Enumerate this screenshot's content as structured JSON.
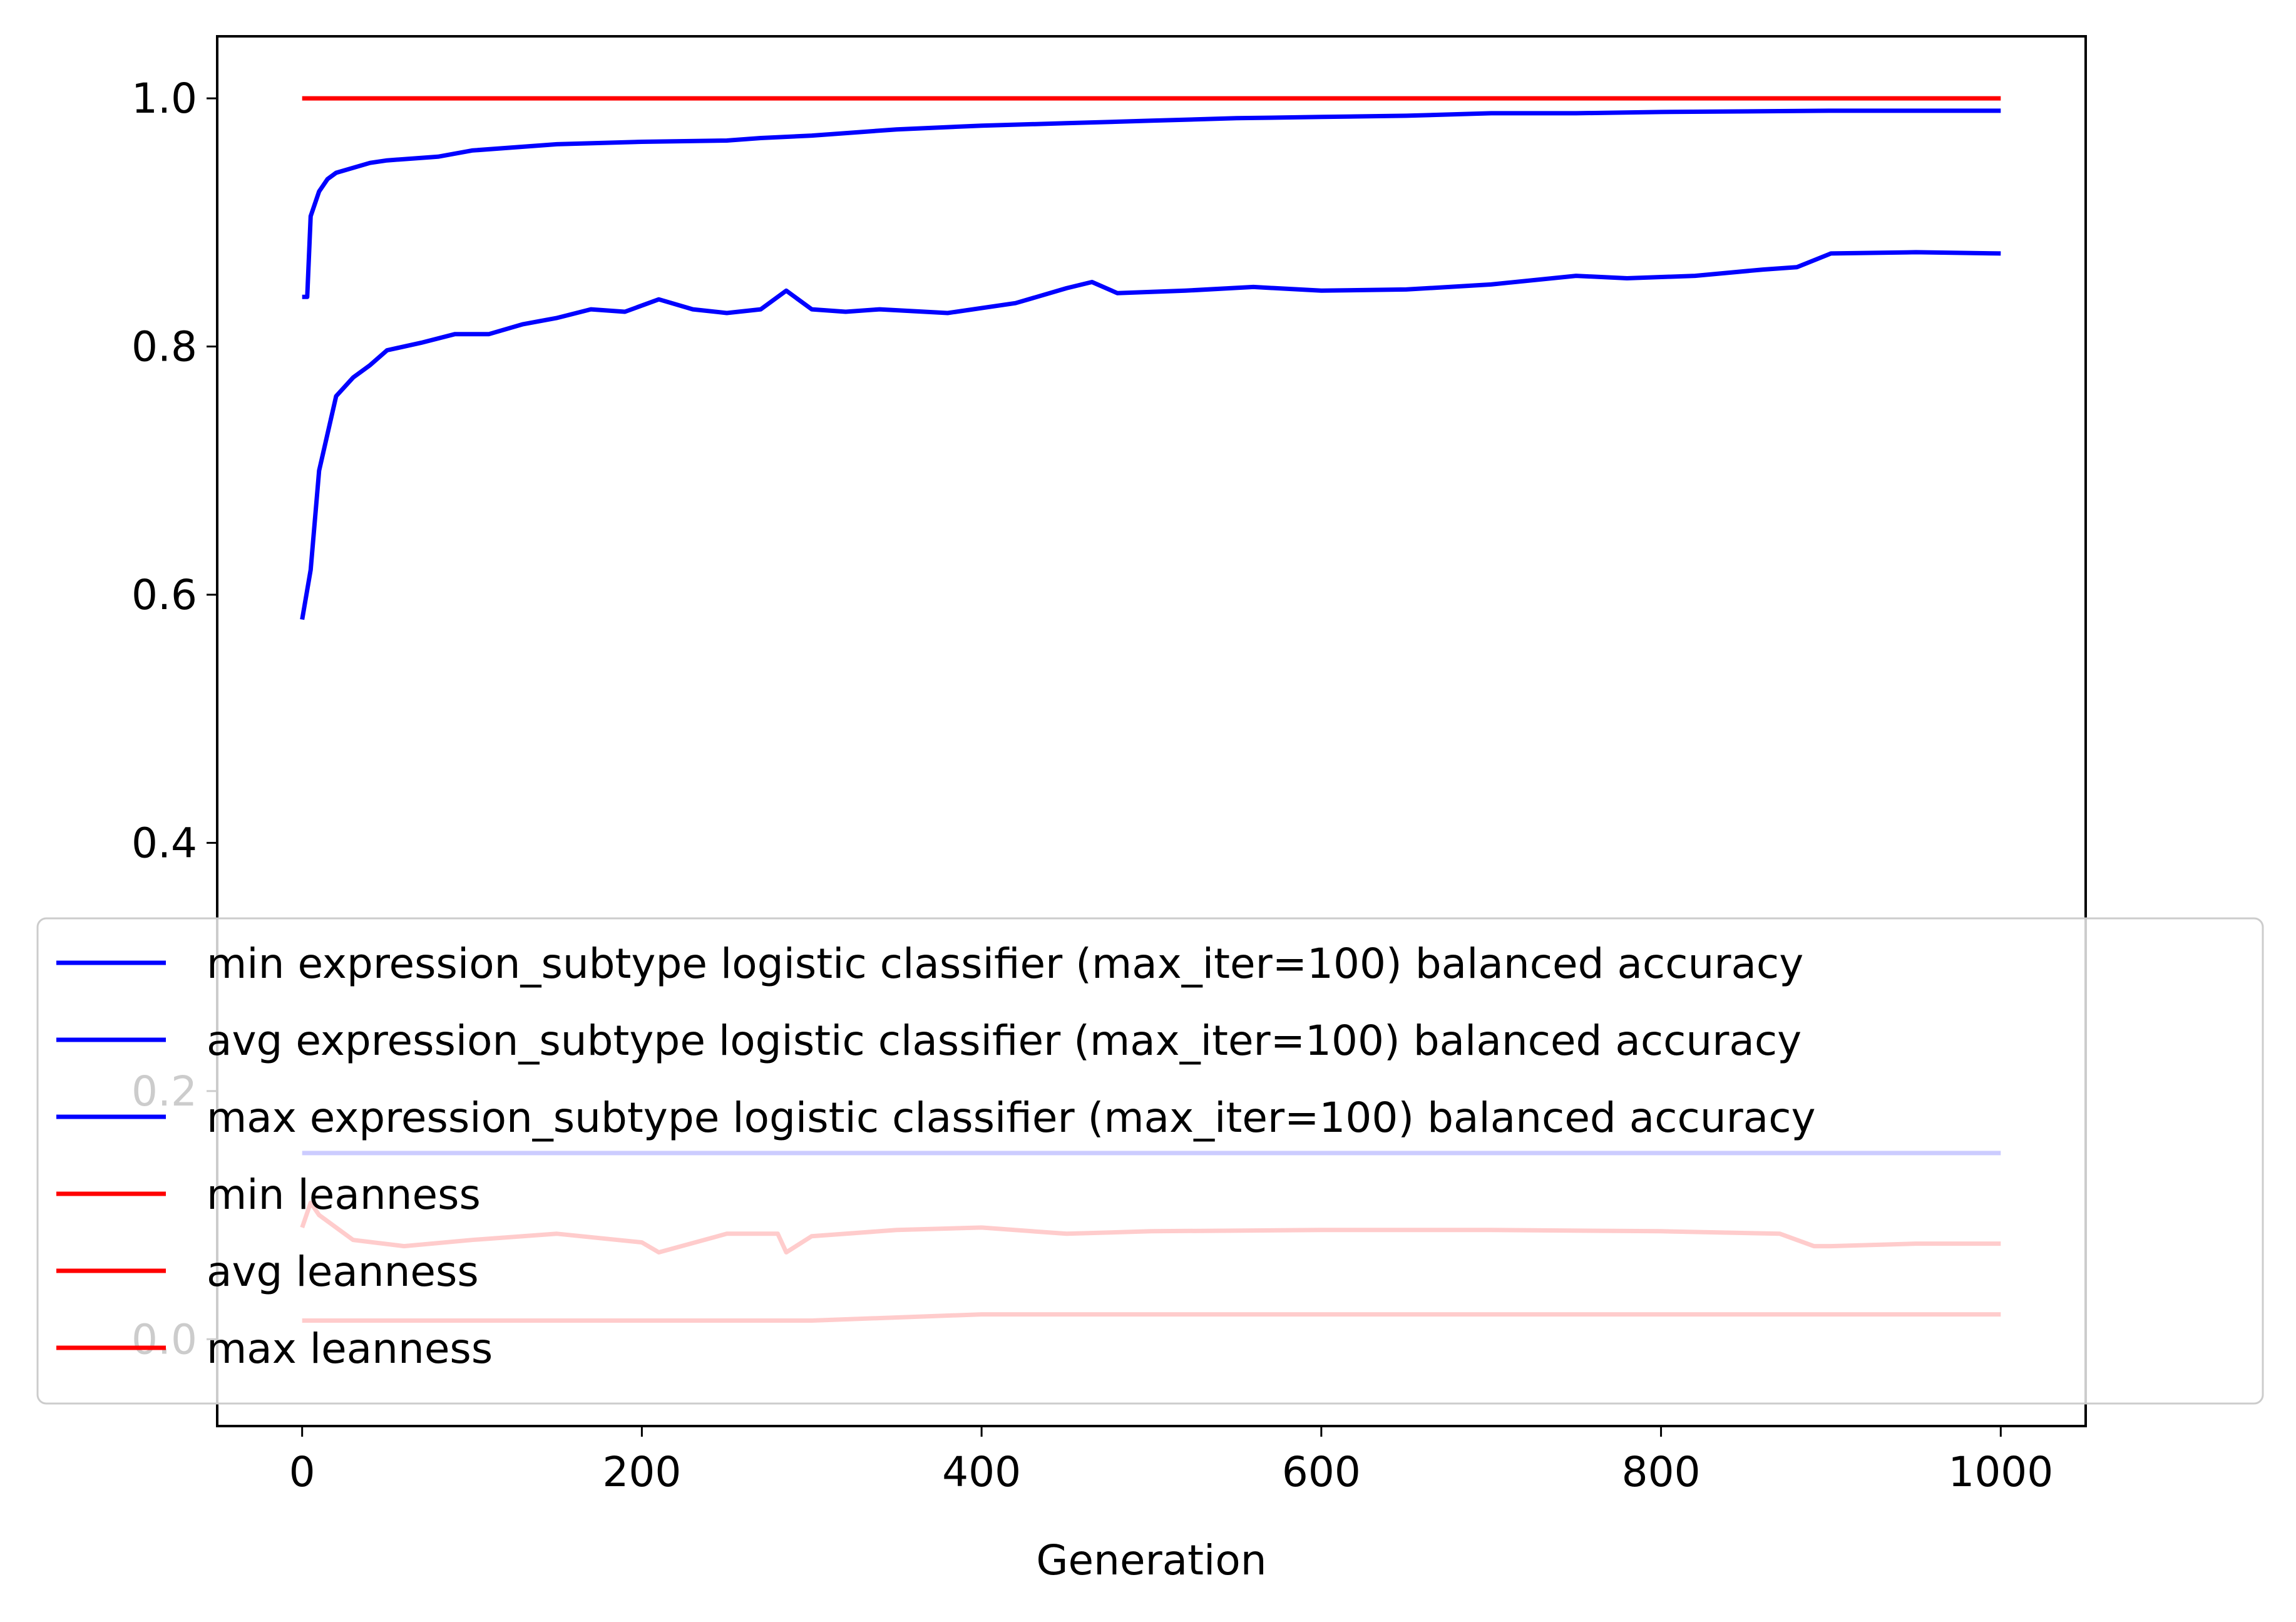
{
  "chart_data": {
    "type": "line",
    "title": "",
    "xlabel": "Generation",
    "ylabel": "",
    "xlim": [
      -50,
      1050
    ],
    "ylim": [
      -0.07,
      1.05
    ],
    "x_ticks": [
      0,
      200,
      400,
      600,
      800,
      1000
    ],
    "y_ticks": [
      0.0,
      0.2,
      0.4,
      0.6,
      0.8,
      1.0
    ],
    "x_tick_labels": [
      "0",
      "200",
      "400",
      "600",
      "800",
      "1000"
    ],
    "y_tick_labels": [
      "0.0",
      "0.2",
      "0.4",
      "0.6",
      "0.8",
      "1.0"
    ],
    "grid": false,
    "legend_position": "lower center (overlapping plot)",
    "series": [
      {
        "name": "min expression_subtype logistic classifier (max_iter=100) balanced accuracy",
        "color": "#0000ff",
        "x": [
          0,
          50,
          100,
          200,
          300,
          400,
          500,
          600,
          700,
          800,
          900,
          1000
        ],
        "y": [
          0.15,
          0.15,
          0.15,
          0.15,
          0.15,
          0.15,
          0.15,
          0.15,
          0.15,
          0.15,
          0.15,
          0.15
        ]
      },
      {
        "name": "avg expression_subtype logistic classifier (max_iter=100) balanced accuracy",
        "color": "#0000ff",
        "x": [
          0,
          5,
          10,
          15,
          20,
          30,
          40,
          50,
          70,
          90,
          110,
          130,
          150,
          170,
          190,
          210,
          230,
          250,
          270,
          285,
          300,
          320,
          340,
          380,
          420,
          450,
          465,
          480,
          520,
          560,
          600,
          650,
          700,
          750,
          780,
          820,
          860,
          880,
          900,
          950,
          1000
        ],
        "y": [
          0.58,
          0.62,
          0.7,
          0.73,
          0.76,
          0.775,
          0.785,
          0.797,
          0.803,
          0.81,
          0.81,
          0.818,
          0.823,
          0.83,
          0.828,
          0.838,
          0.83,
          0.827,
          0.83,
          0.845,
          0.83,
          0.828,
          0.83,
          0.827,
          0.835,
          0.847,
          0.852,
          0.843,
          0.845,
          0.848,
          0.845,
          0.846,
          0.85,
          0.857,
          0.855,
          0.857,
          0.862,
          0.864,
          0.875,
          0.876,
          0.875
        ]
      },
      {
        "name": "max expression_subtype logistic classifier (max_iter=100) balanced accuracy",
        "color": "#0000ff",
        "x": [
          0,
          3,
          5,
          10,
          15,
          20,
          40,
          50,
          80,
          100,
          150,
          200,
          250,
          270,
          300,
          350,
          400,
          450,
          500,
          550,
          600,
          650,
          700,
          750,
          800,
          900,
          1000
        ],
        "y": [
          0.84,
          0.84,
          0.905,
          0.925,
          0.935,
          0.94,
          0.948,
          0.95,
          0.953,
          0.958,
          0.963,
          0.965,
          0.966,
          0.968,
          0.97,
          0.975,
          0.978,
          0.98,
          0.982,
          0.984,
          0.985,
          0.986,
          0.988,
          0.988,
          0.989,
          0.99,
          0.99
        ]
      },
      {
        "name": "min leanness",
        "color": "#ff0000",
        "x": [
          0,
          100,
          200,
          300,
          400,
          500,
          600,
          700,
          800,
          900,
          1000
        ],
        "y": [
          0.015,
          0.015,
          0.015,
          0.015,
          0.02,
          0.02,
          0.02,
          0.02,
          0.02,
          0.02,
          0.02
        ]
      },
      {
        "name": "avg leanness",
        "color": "#ff0000",
        "x": [
          0,
          5,
          10,
          30,
          60,
          100,
          150,
          200,
          210,
          250,
          280,
          285,
          300,
          350,
          400,
          450,
          500,
          600,
          700,
          800,
          870,
          890,
          900,
          950,
          1000
        ],
        "y": [
          0.09,
          0.11,
          0.1,
          0.08,
          0.075,
          0.08,
          0.085,
          0.078,
          0.07,
          0.085,
          0.085,
          0.07,
          0.083,
          0.088,
          0.09,
          0.085,
          0.087,
          0.088,
          0.088,
          0.087,
          0.085,
          0.075,
          0.075,
          0.077,
          0.077
        ]
      },
      {
        "name": "max leanness",
        "color": "#ff0000",
        "x": [
          0,
          1000
        ],
        "y": [
          1.0,
          1.0
        ]
      }
    ]
  }
}
